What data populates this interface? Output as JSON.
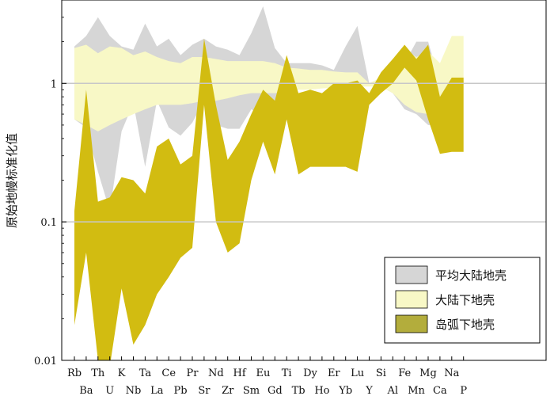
{
  "chart_data": {
    "type": "area",
    "ylabel": "原始地幔标准化值",
    "xlabel": "",
    "yscale": "log",
    "ylim": [
      0.01,
      4
    ],
    "ytick_values": [
      0.01,
      0.1,
      1
    ],
    "ytick_labels": [
      "0.01",
      "0.1",
      "1"
    ],
    "grid": "horizontal lines at 0.1 and 1",
    "legend_position": "bottom-right",
    "categories": [
      "Rb",
      "Ba",
      "Th",
      "U",
      "K",
      "Nb",
      "Ta",
      "La",
      "Ce",
      "Pb",
      "Pr",
      "Sr",
      "Nd",
      "Zr",
      "Hf",
      "Sm",
      "Eu",
      "Gd",
      "Ti",
      "Tb",
      "Dy",
      "Ho",
      "Er",
      "Yb",
      "Lu",
      "Y",
      "Si",
      "Al",
      "Fe",
      "Mn",
      "Mg",
      "Ca",
      "Na",
      "P"
    ],
    "series": [
      {
        "name": "平均大陆地壳",
        "color": "#d6d6d6",
        "upper": [
          1.85,
          2.2,
          3.0,
          2.2,
          1.85,
          1.75,
          2.7,
          1.85,
          2.1,
          1.6,
          1.9,
          2.1,
          1.85,
          1.75,
          1.6,
          2.3,
          3.6,
          1.8,
          1.4,
          1.4,
          1.4,
          1.35,
          1.25,
          1.85,
          2.6,
          1.0,
          1.1,
          1.25,
          1.4,
          2.0,
          2.0,
          1.0,
          1.05,
          1.05
        ],
        "lower": [
          0.55,
          0.48,
          0.23,
          0.12,
          0.45,
          0.72,
          0.25,
          0.75,
          0.48,
          0.42,
          0.52,
          0.75,
          0.5,
          0.47,
          0.47,
          0.65,
          0.58,
          0.6,
          0.88,
          0.95,
          0.95,
          0.95,
          0.95,
          0.95,
          0.97,
          1.0,
          0.95,
          0.85,
          0.65,
          0.6,
          0.5,
          0.5,
          0.85,
          1.0
        ]
      },
      {
        "name": "大陆下地壳",
        "color": "#f8f8c6",
        "upper": [
          1.8,
          1.9,
          1.65,
          1.85,
          1.8,
          1.6,
          1.7,
          1.55,
          1.45,
          1.4,
          1.55,
          1.55,
          1.5,
          1.45,
          1.45,
          1.45,
          1.45,
          1.4,
          1.3,
          1.28,
          1.25,
          1.25,
          1.22,
          1.2,
          1.2,
          1.0,
          1.1,
          1.5,
          1.75,
          1.55,
          1.7,
          1.4,
          2.2,
          2.2
        ],
        "lower": [
          0.55,
          0.5,
          0.45,
          0.5,
          0.55,
          0.6,
          0.65,
          0.7,
          0.7,
          0.7,
          0.72,
          0.75,
          0.75,
          0.78,
          0.82,
          0.85,
          0.85,
          0.85,
          0.88,
          0.9,
          0.9,
          0.92,
          0.93,
          0.95,
          0.95,
          0.95,
          0.95,
          0.85,
          0.7,
          0.62,
          0.6,
          0.6,
          0.85,
          1.0
        ]
      },
      {
        "name": "岛弧下地壳",
        "color": "#d2bc11",
        "upper": [
          0.12,
          0.9,
          0.14,
          0.15,
          0.21,
          0.2,
          0.16,
          0.35,
          0.4,
          0.26,
          0.3,
          2.1,
          0.7,
          0.28,
          0.38,
          0.6,
          0.9,
          0.75,
          1.6,
          0.85,
          0.9,
          0.85,
          1.0,
          1.0,
          1.05,
          0.85,
          1.2,
          1.5,
          1.9,
          1.5,
          1.9,
          0.8,
          1.1,
          1.1
        ],
        "lower": [
          0.018,
          0.06,
          0.01,
          0.009,
          0.033,
          0.013,
          0.018,
          0.03,
          0.04,
          0.055,
          0.065,
          0.7,
          0.1,
          0.06,
          0.07,
          0.2,
          0.38,
          0.22,
          0.55,
          0.22,
          0.25,
          0.25,
          0.25,
          0.25,
          0.23,
          0.7,
          0.85,
          1.0,
          1.3,
          1.05,
          0.55,
          0.31,
          0.32,
          0.32
        ]
      }
    ]
  }
}
